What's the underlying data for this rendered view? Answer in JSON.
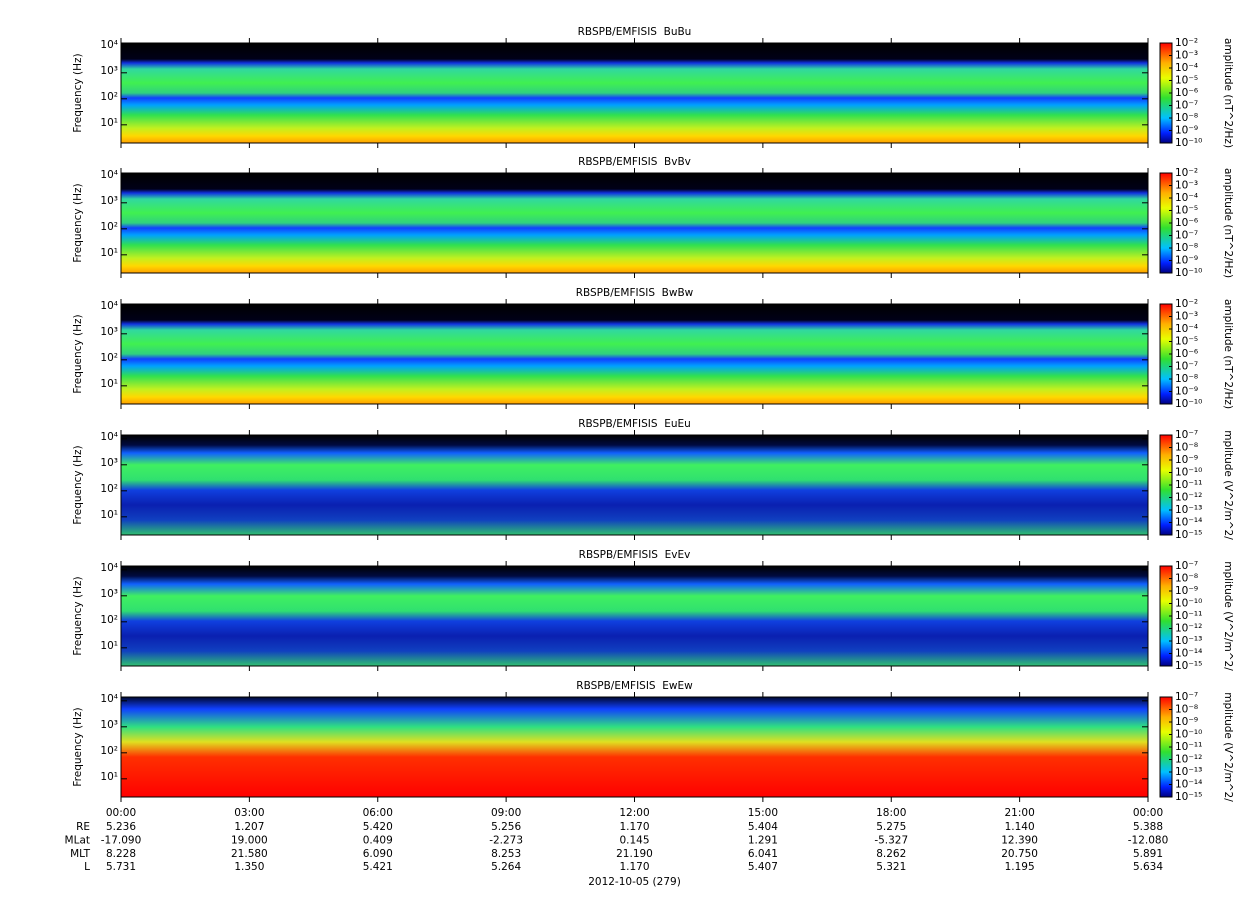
{
  "chart_data": [
    {
      "type": "spectrogram",
      "title": "RBSPB/EMFISIS  BuBu",
      "ylabel": "Frequency (Hz)",
      "yscale": "log",
      "ylim": [
        2,
        14000
      ],
      "yticks": [
        {
          "value": 10,
          "label": "10¹"
        },
        {
          "value": 100,
          "label": "10²"
        },
        {
          "value": 1000,
          "label": "10³"
        },
        {
          "value": 10000,
          "label": "10⁴"
        }
      ],
      "colorbar": {
        "label": "amplitude (nT^2/Hz)",
        "scale": "log",
        "clim": [
          1e-10,
          0.01
        ],
        "ticks": [
          {
            "value": 0.01,
            "label": "10⁻²"
          },
          {
            "value": 0.001,
            "label": "10⁻³"
          },
          {
            "value": 0.0001,
            "label": "10⁻⁴"
          },
          {
            "value": 1e-05,
            "label": "10⁻⁵"
          },
          {
            "value": 1e-06,
            "label": "10⁻⁶"
          },
          {
            "value": 1e-07,
            "label": "10⁻⁷"
          },
          {
            "value": 1e-08,
            "label": "10⁻⁸"
          },
          {
            "value": 1e-09,
            "label": "10⁻⁹"
          },
          {
            "value": 1e-10,
            "label": "10⁻¹⁰"
          }
        ]
      }
    },
    {
      "type": "spectrogram",
      "title": "RBSPB/EMFISIS  BvBv",
      "ylabel": "Frequency (Hz)",
      "yscale": "log",
      "ylim": [
        2,
        14000
      ],
      "yticks": [
        {
          "value": 10,
          "label": "10¹"
        },
        {
          "value": 100,
          "label": "10²"
        },
        {
          "value": 1000,
          "label": "10³"
        },
        {
          "value": 10000,
          "label": "10⁴"
        }
      ],
      "colorbar": {
        "label": "amplitude (nT^2/Hz)",
        "scale": "log",
        "clim": [
          1e-10,
          0.01
        ],
        "ticks": [
          {
            "value": 0.01,
            "label": "10⁻²"
          },
          {
            "value": 0.001,
            "label": "10⁻³"
          },
          {
            "value": 0.0001,
            "label": "10⁻⁴"
          },
          {
            "value": 1e-05,
            "label": "10⁻⁵"
          },
          {
            "value": 1e-06,
            "label": "10⁻⁶"
          },
          {
            "value": 1e-07,
            "label": "10⁻⁷"
          },
          {
            "value": 1e-08,
            "label": "10⁻⁸"
          },
          {
            "value": 1e-09,
            "label": "10⁻⁹"
          },
          {
            "value": 1e-10,
            "label": "10⁻¹⁰"
          }
        ]
      }
    },
    {
      "type": "spectrogram",
      "title": "RBSPB/EMFISIS  BwBw",
      "ylabel": "Frequency (Hz)",
      "yscale": "log",
      "ylim": [
        2,
        14000
      ],
      "yticks": [
        {
          "value": 10,
          "label": "10¹"
        },
        {
          "value": 100,
          "label": "10²"
        },
        {
          "value": 1000,
          "label": "10³"
        },
        {
          "value": 10000,
          "label": "10⁴"
        }
      ],
      "colorbar": {
        "label": "amplitude (nT^2/Hz)",
        "scale": "log",
        "clim": [
          1e-10,
          0.01
        ],
        "ticks": [
          {
            "value": 0.01,
            "label": "10⁻²"
          },
          {
            "value": 0.001,
            "label": "10⁻³"
          },
          {
            "value": 0.0001,
            "label": "10⁻⁴"
          },
          {
            "value": 1e-05,
            "label": "10⁻⁵"
          },
          {
            "value": 1e-06,
            "label": "10⁻⁶"
          },
          {
            "value": 1e-07,
            "label": "10⁻⁷"
          },
          {
            "value": 1e-08,
            "label": "10⁻⁸"
          },
          {
            "value": 1e-09,
            "label": "10⁻⁹"
          },
          {
            "value": 1e-10,
            "label": "10⁻¹⁰"
          }
        ]
      }
    },
    {
      "type": "spectrogram",
      "title": "RBSPB/EMFISIS  EuEu",
      "ylabel": "Frequency (Hz)",
      "yscale": "log",
      "ylim": [
        2,
        14000
      ],
      "yticks": [
        {
          "value": 10,
          "label": "10¹"
        },
        {
          "value": 100,
          "label": "10²"
        },
        {
          "value": 1000,
          "label": "10³"
        },
        {
          "value": 10000,
          "label": "10⁴"
        }
      ],
      "colorbar": {
        "label": "mplitude (V^2/m^2/",
        "scale": "log",
        "clim": [
          1e-15,
          1e-07
        ],
        "ticks": [
          {
            "value": 1e-07,
            "label": "10⁻⁷"
          },
          {
            "value": 1e-08,
            "label": "10⁻⁸"
          },
          {
            "value": 1e-09,
            "label": "10⁻⁹"
          },
          {
            "value": 1e-10,
            "label": "10⁻¹⁰"
          },
          {
            "value": 1e-11,
            "label": "10⁻¹¹"
          },
          {
            "value": 1e-12,
            "label": "10⁻¹²"
          },
          {
            "value": 1e-13,
            "label": "10⁻¹³"
          },
          {
            "value": 1e-14,
            "label": "10⁻¹⁴"
          },
          {
            "value": 1e-15,
            "label": "10⁻¹⁵"
          }
        ]
      }
    },
    {
      "type": "spectrogram",
      "title": "RBSPB/EMFISIS  EvEv",
      "ylabel": "Frequency (Hz)",
      "yscale": "log",
      "ylim": [
        2,
        14000
      ],
      "yticks": [
        {
          "value": 10,
          "label": "10¹"
        },
        {
          "value": 100,
          "label": "10²"
        },
        {
          "value": 1000,
          "label": "10³"
        },
        {
          "value": 10000,
          "label": "10⁴"
        }
      ],
      "colorbar": {
        "label": "mplitude (V^2/m^2/",
        "scale": "log",
        "clim": [
          1e-15,
          1e-07
        ],
        "ticks": [
          {
            "value": 1e-07,
            "label": "10⁻⁷"
          },
          {
            "value": 1e-08,
            "label": "10⁻⁸"
          },
          {
            "value": 1e-09,
            "label": "10⁻⁹"
          },
          {
            "value": 1e-10,
            "label": "10⁻¹⁰"
          },
          {
            "value": 1e-11,
            "label": "10⁻¹¹"
          },
          {
            "value": 1e-12,
            "label": "10⁻¹²"
          },
          {
            "value": 1e-13,
            "label": "10⁻¹³"
          },
          {
            "value": 1e-14,
            "label": "10⁻¹⁴"
          },
          {
            "value": 1e-15,
            "label": "10⁻¹⁵"
          }
        ]
      }
    },
    {
      "type": "spectrogram",
      "title": "RBSPB/EMFISIS  EwEw",
      "ylabel": "Frequency (Hz)",
      "yscale": "log",
      "ylim": [
        2,
        14000
      ],
      "yticks": [
        {
          "value": 10,
          "label": "10¹"
        },
        {
          "value": 100,
          "label": "10²"
        },
        {
          "value": 1000,
          "label": "10³"
        },
        {
          "value": 10000,
          "label": "10⁴"
        }
      ],
      "colorbar": {
        "label": "mplitude (V^2/m^2/",
        "scale": "log",
        "clim": [
          1e-15,
          1e-07
        ],
        "ticks": [
          {
            "value": 1e-07,
            "label": "10⁻⁷"
          },
          {
            "value": 1e-08,
            "label": "10⁻⁸"
          },
          {
            "value": 1e-09,
            "label": "10⁻⁹"
          },
          {
            "value": 1e-10,
            "label": "10⁻¹⁰"
          },
          {
            "value": 1e-11,
            "label": "10⁻¹¹"
          },
          {
            "value": 1e-12,
            "label": "10⁻¹²"
          },
          {
            "value": 1e-13,
            "label": "10⁻¹³"
          },
          {
            "value": 1e-14,
            "label": "10⁻¹⁴"
          },
          {
            "value": 1e-15,
            "label": "10⁻¹⁵"
          }
        ]
      },
      "xlim": [
        0,
        24
      ],
      "xticks": [
        {
          "value": 0,
          "label": "00:00"
        },
        {
          "value": 3,
          "label": "03:00"
        },
        {
          "value": 6,
          "label": "06:00"
        },
        {
          "value": 9,
          "label": "09:00"
        },
        {
          "value": 12,
          "label": "12:00"
        },
        {
          "value": 15,
          "label": "15:00"
        },
        {
          "value": 18,
          "label": "18:00"
        },
        {
          "value": 21,
          "label": "21:00"
        },
        {
          "value": 24,
          "label": "00:00"
        }
      ]
    }
  ],
  "ephemeris": {
    "rows": [
      {
        "label": "RE",
        "values": [
          "5.236",
          "1.207",
          "5.420",
          "5.256",
          "1.170",
          "5.404",
          "5.275",
          "1.140",
          "5.388"
        ]
      },
      {
        "label": "MLat",
        "values": [
          "-17.090",
          "19.000",
          "0.409",
          "-2.273",
          "0.145",
          "1.291",
          "-5.327",
          "12.390",
          "-12.080"
        ]
      },
      {
        "label": "MLT",
        "values": [
          "8.228",
          "21.580",
          "6.090",
          "8.253",
          "21.190",
          "6.041",
          "8.262",
          "20.750",
          "5.891"
        ]
      },
      {
        "label": "L",
        "values": [
          "5.731",
          "1.350",
          "5.421",
          "5.264",
          "1.170",
          "5.407",
          "5.321",
          "1.195",
          "5.634"
        ]
      }
    ],
    "date": "2012-10-05 (279)"
  }
}
